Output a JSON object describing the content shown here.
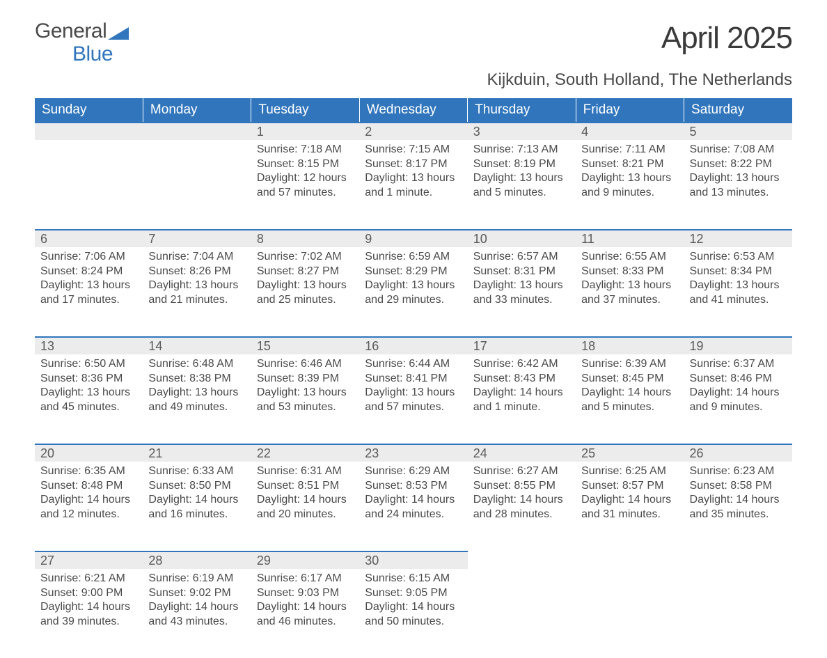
{
  "logo": {
    "general": "General",
    "blue": "Blue"
  },
  "title": "April 2025",
  "location": "Kijkduin, South Holland, The Netherlands",
  "colors": {
    "header_bg": "#3176bd",
    "header_text": "#ffffff",
    "daynum_bg": "#ececec",
    "daynum_border": "#3176bd",
    "body_text": "#4a4a4a",
    "background": "#ffffff"
  },
  "fonts": {
    "month_size_pt": 33,
    "location_size_pt": 18,
    "header_size_pt": 14,
    "daynum_size_pt": 14,
    "content_size_pt": 12
  },
  "days_of_week": [
    "Sunday",
    "Monday",
    "Tuesday",
    "Wednesday",
    "Thursday",
    "Friday",
    "Saturday"
  ],
  "weeks": [
    [
      null,
      null,
      {
        "n": "1",
        "sunrise": "7:18 AM",
        "sunset": "8:15 PM",
        "daylight": "12 hours and 57 minutes."
      },
      {
        "n": "2",
        "sunrise": "7:15 AM",
        "sunset": "8:17 PM",
        "daylight": "13 hours and 1 minute."
      },
      {
        "n": "3",
        "sunrise": "7:13 AM",
        "sunset": "8:19 PM",
        "daylight": "13 hours and 5 minutes."
      },
      {
        "n": "4",
        "sunrise": "7:11 AM",
        "sunset": "8:21 PM",
        "daylight": "13 hours and 9 minutes."
      },
      {
        "n": "5",
        "sunrise": "7:08 AM",
        "sunset": "8:22 PM",
        "daylight": "13 hours and 13 minutes."
      }
    ],
    [
      {
        "n": "6",
        "sunrise": "7:06 AM",
        "sunset": "8:24 PM",
        "daylight": "13 hours and 17 minutes."
      },
      {
        "n": "7",
        "sunrise": "7:04 AM",
        "sunset": "8:26 PM",
        "daylight": "13 hours and 21 minutes."
      },
      {
        "n": "8",
        "sunrise": "7:02 AM",
        "sunset": "8:27 PM",
        "daylight": "13 hours and 25 minutes."
      },
      {
        "n": "9",
        "sunrise": "6:59 AM",
        "sunset": "8:29 PM",
        "daylight": "13 hours and 29 minutes."
      },
      {
        "n": "10",
        "sunrise": "6:57 AM",
        "sunset": "8:31 PM",
        "daylight": "13 hours and 33 minutes."
      },
      {
        "n": "11",
        "sunrise": "6:55 AM",
        "sunset": "8:33 PM",
        "daylight": "13 hours and 37 minutes."
      },
      {
        "n": "12",
        "sunrise": "6:53 AM",
        "sunset": "8:34 PM",
        "daylight": "13 hours and 41 minutes."
      }
    ],
    [
      {
        "n": "13",
        "sunrise": "6:50 AM",
        "sunset": "8:36 PM",
        "daylight": "13 hours and 45 minutes."
      },
      {
        "n": "14",
        "sunrise": "6:48 AM",
        "sunset": "8:38 PM",
        "daylight": "13 hours and 49 minutes."
      },
      {
        "n": "15",
        "sunrise": "6:46 AM",
        "sunset": "8:39 PM",
        "daylight": "13 hours and 53 minutes."
      },
      {
        "n": "16",
        "sunrise": "6:44 AM",
        "sunset": "8:41 PM",
        "daylight": "13 hours and 57 minutes."
      },
      {
        "n": "17",
        "sunrise": "6:42 AM",
        "sunset": "8:43 PM",
        "daylight": "14 hours and 1 minute."
      },
      {
        "n": "18",
        "sunrise": "6:39 AM",
        "sunset": "8:45 PM",
        "daylight": "14 hours and 5 minutes."
      },
      {
        "n": "19",
        "sunrise": "6:37 AM",
        "sunset": "8:46 PM",
        "daylight": "14 hours and 9 minutes."
      }
    ],
    [
      {
        "n": "20",
        "sunrise": "6:35 AM",
        "sunset": "8:48 PM",
        "daylight": "14 hours and 12 minutes."
      },
      {
        "n": "21",
        "sunrise": "6:33 AM",
        "sunset": "8:50 PM",
        "daylight": "14 hours and 16 minutes."
      },
      {
        "n": "22",
        "sunrise": "6:31 AM",
        "sunset": "8:51 PM",
        "daylight": "14 hours and 20 minutes."
      },
      {
        "n": "23",
        "sunrise": "6:29 AM",
        "sunset": "8:53 PM",
        "daylight": "14 hours and 24 minutes."
      },
      {
        "n": "24",
        "sunrise": "6:27 AM",
        "sunset": "8:55 PM",
        "daylight": "14 hours and 28 minutes."
      },
      {
        "n": "25",
        "sunrise": "6:25 AM",
        "sunset": "8:57 PM",
        "daylight": "14 hours and 31 minutes."
      },
      {
        "n": "26",
        "sunrise": "6:23 AM",
        "sunset": "8:58 PM",
        "daylight": "14 hours and 35 minutes."
      }
    ],
    [
      {
        "n": "27",
        "sunrise": "6:21 AM",
        "sunset": "9:00 PM",
        "daylight": "14 hours and 39 minutes."
      },
      {
        "n": "28",
        "sunrise": "6:19 AM",
        "sunset": "9:02 PM",
        "daylight": "14 hours and 43 minutes."
      },
      {
        "n": "29",
        "sunrise": "6:17 AM",
        "sunset": "9:03 PM",
        "daylight": "14 hours and 46 minutes."
      },
      {
        "n": "30",
        "sunrise": "6:15 AM",
        "sunset": "9:05 PM",
        "daylight": "14 hours and 50 minutes."
      },
      null,
      null,
      null
    ]
  ],
  "labels": {
    "sunrise": "Sunrise: ",
    "sunset": "Sunset: ",
    "daylight": "Daylight: "
  }
}
